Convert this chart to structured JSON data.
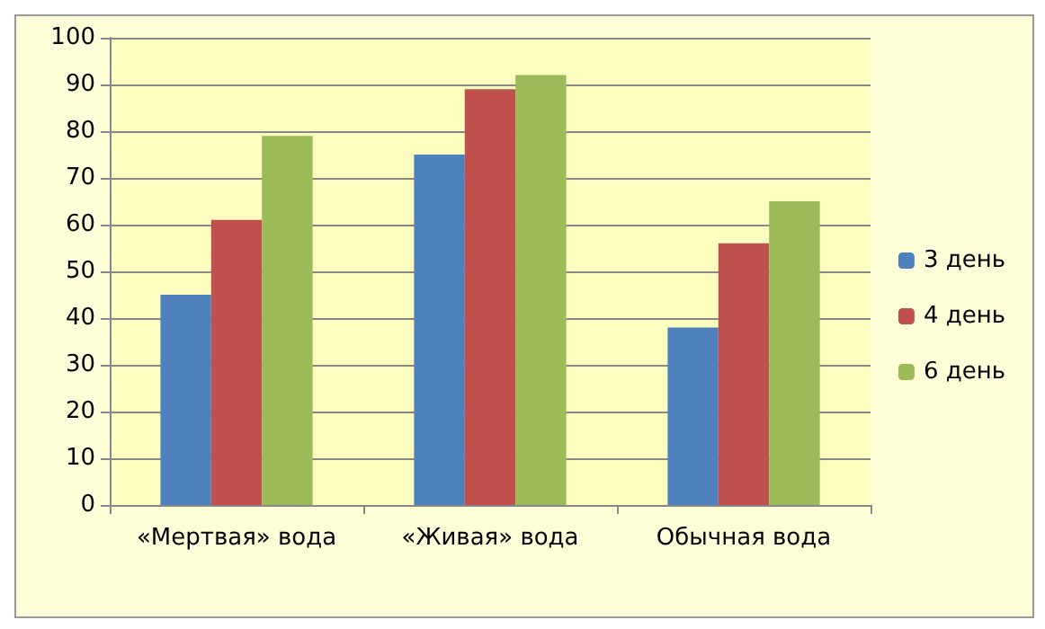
{
  "chart_data": {
    "type": "bar",
    "categories": [
      "«Мертвая» вода",
      "«Живая» вода",
      "Обычная вода"
    ],
    "series": [
      {
        "name": "3 день",
        "color": "#4f81bd",
        "values": [
          45,
          75,
          38
        ]
      },
      {
        "name": "4 день",
        "color": "#c0504d",
        "values": [
          61,
          89,
          56
        ]
      },
      {
        "name": "6 день",
        "color": "#9bbb59",
        "values": [
          79,
          92,
          65
        ]
      }
    ],
    "ylim": [
      0,
      100
    ],
    "yticks": [
      0,
      10,
      20,
      30,
      40,
      50,
      60,
      70,
      80,
      90,
      100
    ],
    "grid": "y",
    "legend": "right"
  }
}
